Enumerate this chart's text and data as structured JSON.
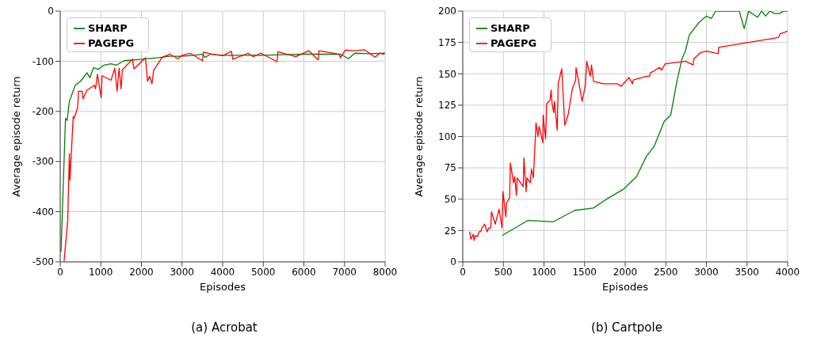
{
  "chart_data": [
    {
      "type": "line",
      "title": "(a) Acrobat",
      "xlabel": "Episodes",
      "ylabel": "Average episode return",
      "xlim": [
        0,
        8000
      ],
      "xticks": [
        0,
        1000,
        2000,
        3000,
        4000,
        5000,
        6000,
        7000,
        8000
      ],
      "ylim": [
        -500,
        0
      ],
      "yticks": [
        -500,
        -400,
        -300,
        -200,
        -100,
        0
      ],
      "grid": true,
      "legend": "top left",
      "series": [
        {
          "name": "SHARP",
          "color": "#008000",
          "x": [
            20,
            130,
            170,
            225,
            370,
            500,
            660,
            730,
            820,
            940,
            1070,
            1250,
            1380,
            1570,
            2000,
            2430,
            2700,
            3000,
            3300,
            3500,
            3570,
            3700,
            4000,
            4500,
            5000,
            5500,
            6000,
            6500,
            6900,
            7100,
            7250,
            7600,
            8000
          ],
          "values": [
            -480,
            -214,
            -218,
            -180,
            -148,
            -140,
            -123,
            -133,
            -113,
            -116,
            -108,
            -105,
            -108,
            -99,
            -96,
            -93,
            -90,
            -90,
            -88,
            -86,
            -92,
            -86,
            -88,
            -88,
            -88,
            -87,
            -86,
            -86,
            -86,
            -95,
            -84,
            -85,
            -84
          ]
        },
        {
          "name": "PAGEPG",
          "color": "#ff0000",
          "x": [
            95,
            185,
            225,
            240,
            320,
            340,
            430,
            450,
            545,
            560,
            655,
            840,
            870,
            915,
            1010,
            1030,
            1250,
            1345,
            1400,
            1450,
            1500,
            1530,
            1780,
            1815,
            2100,
            2150,
            2200,
            2260,
            2300,
            2510,
            2700,
            2900,
            3000,
            3200,
            3500,
            3530,
            3745,
            4000,
            4215,
            4250,
            4625,
            4755,
            4940,
            5340,
            5360,
            5800,
            6120,
            6350,
            6370,
            6870,
            6900,
            7020,
            7250,
            7490,
            7750,
            7870,
            7980
          ],
          "values": [
            -499,
            -417,
            -284,
            -337,
            -210,
            -214,
            -192,
            -160,
            -160,
            -175,
            -158,
            -148,
            -155,
            -126,
            -173,
            -129,
            -138,
            -114,
            -160,
            -114,
            -155,
            -117,
            -96,
            -115,
            -93,
            -140,
            -130,
            -145,
            -118,
            -92,
            -86,
            -95,
            -88,
            -84,
            -99,
            -82,
            -86,
            -89,
            -80,
            -96,
            -84,
            -91,
            -84,
            -101,
            -81,
            -91,
            -79,
            -97,
            -79,
            -86,
            -93,
            -78,
            -79,
            -77,
            -92,
            -84,
            -86
          ]
        }
      ]
    },
    {
      "type": "line",
      "title": "(b) Cartpole",
      "xlabel": "Episodes",
      "ylabel": "Average episode return",
      "xlim": [
        0,
        4000
      ],
      "xticks": [
        0,
        500,
        1000,
        1500,
        2000,
        2500,
        3000,
        3500,
        4000
      ],
      "ylim": [
        0,
        200
      ],
      "yticks": [
        0,
        25,
        50,
        75,
        100,
        125,
        150,
        175,
        200
      ],
      "grid": true,
      "legend": "top left",
      "series": [
        {
          "name": "SHARP",
          "color": "#008000",
          "x": [
            484,
            800,
            1116,
            1377,
            1610,
            1795,
            1980,
            2140,
            2260,
            2355,
            2480,
            2560,
            2640,
            2700,
            2740,
            2790,
            2910,
            3000,
            3060,
            3115,
            3405,
            3465,
            3520,
            3630,
            3680,
            3730,
            3780,
            3840,
            3900,
            3950,
            4000
          ],
          "values": [
            21,
            33,
            32,
            41,
            43,
            51,
            58,
            68,
            84,
            92,
            112,
            117,
            145,
            162,
            168,
            181,
            191,
            196,
            194,
            200,
            200,
            186,
            200,
            195,
            200,
            196,
            200,
            198,
            198,
            200,
            200
          ]
        },
        {
          "name": "PAGEPG",
          "color": "#ff0000",
          "x": [
            84,
            100,
            130,
            140,
            155,
            180,
            200,
            223,
            235,
            270,
            300,
            320,
            345,
            353,
            400,
            447,
            484,
            495,
            530,
            540,
            577,
            586,
            625,
            640,
            660,
            670,
            744,
            753,
            780,
            790,
            830,
            847,
            870,
            902,
            925,
            940,
            986,
            990,
            1020,
            1033,
            1075,
            1088,
            1100,
            1120,
            1130,
            1163,
            1175,
            1219,
            1256,
            1300,
            1349,
            1390,
            1395,
            1470,
            1510,
            1526,
            1570,
            1585,
            1610,
            1730,
            1907,
            1950,
            2046,
            2090,
            2100,
            2260,
            2300,
            2315,
            2350,
            2420,
            2450,
            2493,
            2744,
            2837,
            2845,
            2930,
            3005,
            3145,
            3150,
            3888,
            3910,
            3960,
            4000
          ],
          "values": [
            24,
            18,
            22,
            17,
            21,
            20,
            24,
            24,
            27,
            30,
            24,
            27,
            27,
            40,
            30,
            42,
            27,
            56,
            36,
            47,
            51,
            79,
            63,
            68,
            53,
            67,
            60,
            83,
            56,
            67,
            63,
            74,
            67,
            111,
            100,
            108,
            95,
            117,
            98,
            126,
            129,
            137,
            126,
            119,
            128,
            105,
            142,
            154,
            109,
            118,
            138,
            145,
            155,
            128,
            141,
            160,
            148,
            157,
            144,
            142,
            142,
            140,
            147,
            142,
            145,
            148,
            148,
            151,
            152,
            155,
            153,
            158,
            160,
            157,
            162,
            167,
            168,
            166,
            171,
            179,
            182,
            183,
            184
          ]
        }
      ]
    }
  ]
}
